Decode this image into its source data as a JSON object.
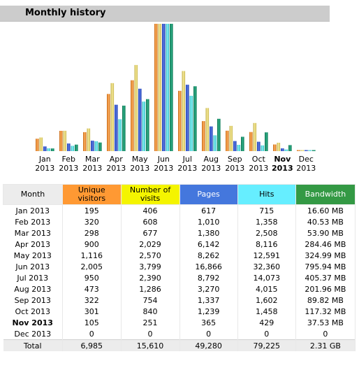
{
  "section_title": "Monthly history",
  "chart_data": {
    "type": "bar",
    "categories": [
      "Jan 2013",
      "Feb 2013",
      "Mar 2013",
      "Apr 2013",
      "May 2013",
      "Jun 2013",
      "Jul 2013",
      "Aug 2013",
      "Sep 2013",
      "Oct 2013",
      "Nov 2013",
      "Dec 2013"
    ],
    "highlight_month_index": 10,
    "series": [
      {
        "name": "Unique visitors",
        "color": "#ff9933",
        "values": [
          195,
          320,
          298,
          900,
          1116,
          2005,
          950,
          473,
          322,
          301,
          105,
          0
        ]
      },
      {
        "name": "Number of visits",
        "color": "#f4f400",
        "values": [
          406,
          608,
          677,
          2029,
          2570,
          3799,
          2390,
          1286,
          754,
          840,
          251,
          0
        ]
      },
      {
        "name": "Pages",
        "color": "#4477dd",
        "values": [
          617,
          1010,
          1380,
          6142,
          8262,
          16866,
          8792,
          3270,
          1337,
          1239,
          365,
          0
        ]
      },
      {
        "name": "Hits",
        "color": "#66eeff",
        "values": [
          715,
          1358,
          2508,
          8116,
          12591,
          32360,
          14073,
          4015,
          1602,
          1458,
          429,
          0
        ]
      },
      {
        "name": "Bandwidth",
        "color": "#339944",
        "values": [
          16.6,
          40.53,
          53.9,
          284.46,
          324.99,
          795.94,
          405.37,
          201.96,
          89.82,
          117.32,
          37.53,
          0
        ]
      }
    ]
  },
  "table": {
    "headers": {
      "month": "Month",
      "unique": "Unique visitors",
      "visits": "Number of visits",
      "pages": "Pages",
      "hits": "Hits",
      "bandwidth": "Bandwidth"
    },
    "rows": [
      {
        "month": "Jan 2013",
        "unique": "195",
        "visits": "406",
        "pages": "617",
        "hits": "715",
        "bandwidth": "16.60 MB"
      },
      {
        "month": "Feb 2013",
        "unique": "320",
        "visits": "608",
        "pages": "1,010",
        "hits": "1,358",
        "bandwidth": "40.53 MB"
      },
      {
        "month": "Mar 2013",
        "unique": "298",
        "visits": "677",
        "pages": "1,380",
        "hits": "2,508",
        "bandwidth": "53.90 MB"
      },
      {
        "month": "Apr 2013",
        "unique": "900",
        "visits": "2,029",
        "pages": "6,142",
        "hits": "8,116",
        "bandwidth": "284.46 MB"
      },
      {
        "month": "May 2013",
        "unique": "1,116",
        "visits": "2,570",
        "pages": "8,262",
        "hits": "12,591",
        "bandwidth": "324.99 MB"
      },
      {
        "month": "Jun 2013",
        "unique": "2,005",
        "visits": "3,799",
        "pages": "16,866",
        "hits": "32,360",
        "bandwidth": "795.94 MB"
      },
      {
        "month": "Jul 2013",
        "unique": "950",
        "visits": "2,390",
        "pages": "8,792",
        "hits": "14,073",
        "bandwidth": "405.37 MB"
      },
      {
        "month": "Aug 2013",
        "unique": "473",
        "visits": "1,286",
        "pages": "3,270",
        "hits": "4,015",
        "bandwidth": "201.96 MB"
      },
      {
        "month": "Sep 2013",
        "unique": "322",
        "visits": "754",
        "pages": "1,337",
        "hits": "1,602",
        "bandwidth": "89.82 MB"
      },
      {
        "month": "Oct 2013",
        "unique": "301",
        "visits": "840",
        "pages": "1,239",
        "hits": "1,458",
        "bandwidth": "117.32 MB"
      },
      {
        "month": "Nov 2013",
        "unique": "105",
        "visits": "251",
        "pages": "365",
        "hits": "429",
        "bandwidth": "37.53 MB"
      },
      {
        "month": "Dec 2013",
        "unique": "0",
        "visits": "0",
        "pages": "0",
        "hits": "0",
        "bandwidth": "0"
      }
    ],
    "total": {
      "month": "Total",
      "unique": "6,985",
      "visits": "15,610",
      "pages": "49,280",
      "hits": "79,225",
      "bandwidth": "2.31 GB"
    }
  }
}
